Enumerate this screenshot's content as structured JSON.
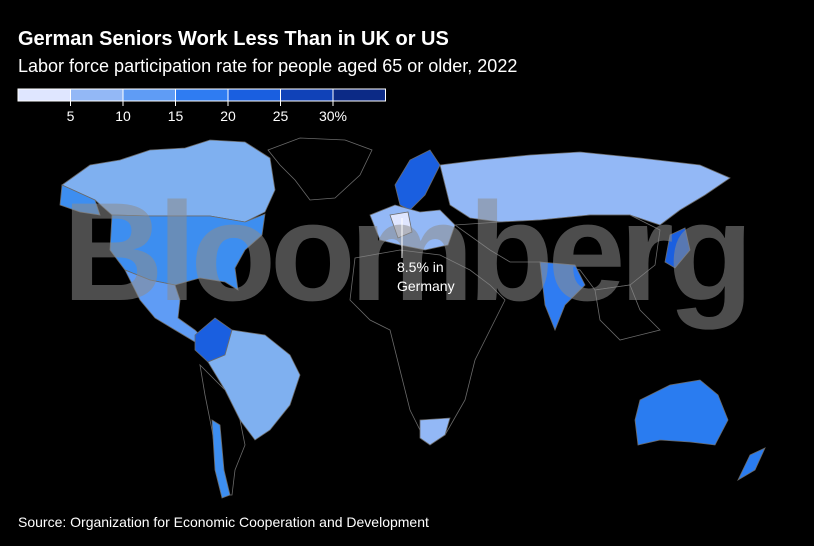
{
  "header": {
    "title": "German Seniors Work Less Than in UK or US",
    "subtitle": "Labor force participation rate for people aged 65 or older, 2022"
  },
  "legend": {
    "colors": [
      "#dfe6ff",
      "#93b8f6",
      "#5f9cf5",
      "#2f7cf2",
      "#1a5fe0",
      "#1042b8",
      "#0c2a86"
    ],
    "ticks": [
      5,
      10,
      15,
      20,
      25,
      {
        "value": 30,
        "label": "30%"
      }
    ]
  },
  "annotation": {
    "lines": [
      "8.5% in",
      "Germany"
    ]
  },
  "watermark": "Bloomberg",
  "source": "Source: Organization for Economic Cooperation and Development"
}
